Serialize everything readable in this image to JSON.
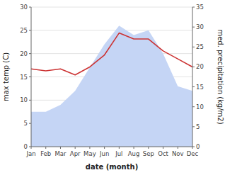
{
  "chart_data": {
    "type": "area",
    "categories": [
      "Jan",
      "Feb",
      "Mar",
      "Apr",
      "May",
      "Jun",
      "Jul",
      "Aug",
      "Sep",
      "Oct",
      "Nov",
      "Dec"
    ],
    "xlabel": "date (month)",
    "ylabel": "max temp (C)",
    "y2label": "med. precipitation (kg/m2)",
    "series": [
      {
        "type": "area",
        "color": "#c5d5f5",
        "values": [
          7.5,
          7.5,
          9.0,
          12.0,
          17.0,
          22.0,
          26.0,
          24.0,
          25.0,
          20.0,
          13.0,
          12.0
        ]
      },
      {
        "type": "line",
        "color": "#cc3333",
        "axis": "y2",
        "values": [
          19.5,
          19.0,
          19.5,
          18.0,
          20.0,
          23.0,
          28.5,
          27.0,
          27.0,
          24.0,
          22.0,
          20.0
        ]
      }
    ],
    "ylim": [
      0,
      30
    ],
    "yticks": [
      0,
      5,
      10,
      15,
      20,
      25,
      30
    ],
    "y2lim": [
      0,
      35
    ],
    "y2ticks": [
      0,
      5,
      10,
      15,
      20,
      25,
      30,
      35
    ],
    "grid": true
  }
}
